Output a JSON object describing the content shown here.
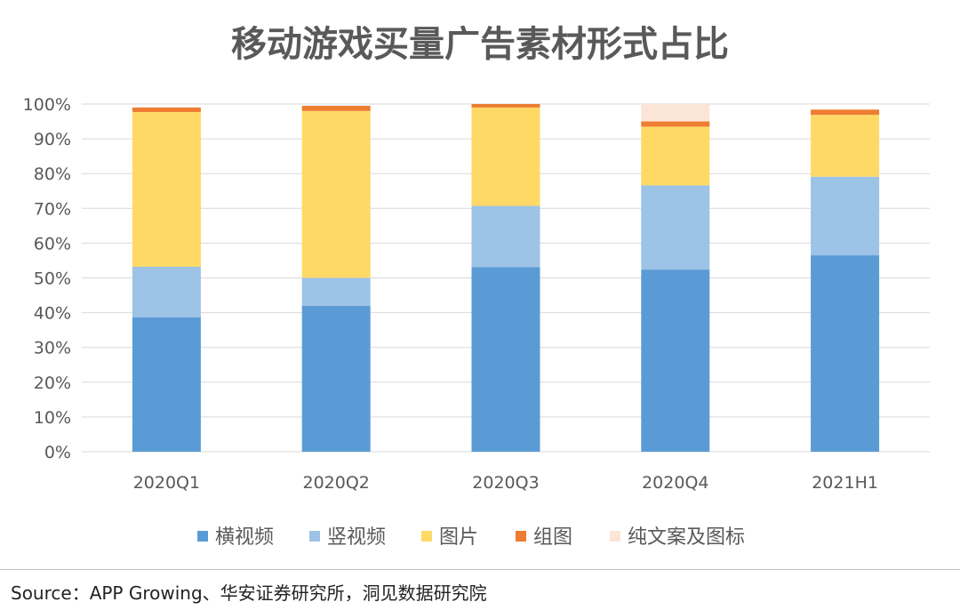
{
  "chart_data": {
    "type": "bar",
    "stacked": true,
    "title": "移动游戏买量广告素材形式占比",
    "categories": [
      "2020Q1",
      "2020Q2",
      "2020Q3",
      "2020Q4",
      "2021H1"
    ],
    "y_tick_labels": [
      "0%",
      "10%",
      "20%",
      "30%",
      "40%",
      "50%",
      "60%",
      "70%",
      "80%",
      "90%",
      "100%"
    ],
    "ylim": [
      0,
      100
    ],
    "grid": true,
    "legend_position": "bottom",
    "series": [
      {
        "name": "横视频",
        "color": "#5b9bd5",
        "values": [
          38.7,
          42.0,
          53.1,
          52.4,
          56.5
        ]
      },
      {
        "name": "竖视频",
        "color": "#9dc3e6",
        "values": [
          14.5,
          8.0,
          17.6,
          24.2,
          22.6
        ]
      },
      {
        "name": "图片",
        "color": "#ffd966",
        "values": [
          44.5,
          48.0,
          28.3,
          16.9,
          17.8
        ]
      },
      {
        "name": "组图",
        "color": "#ed7d31",
        "values": [
          1.3,
          1.5,
          1.0,
          1.5,
          1.5
        ]
      },
      {
        "name": "纯文案及图标",
        "color": "#fbe5d6",
        "values": [
          0.0,
          0.0,
          0.0,
          5.0,
          0.0
        ]
      }
    ]
  },
  "source": "Source：APP Growing、华安证券研究所，洞见数据研究院"
}
